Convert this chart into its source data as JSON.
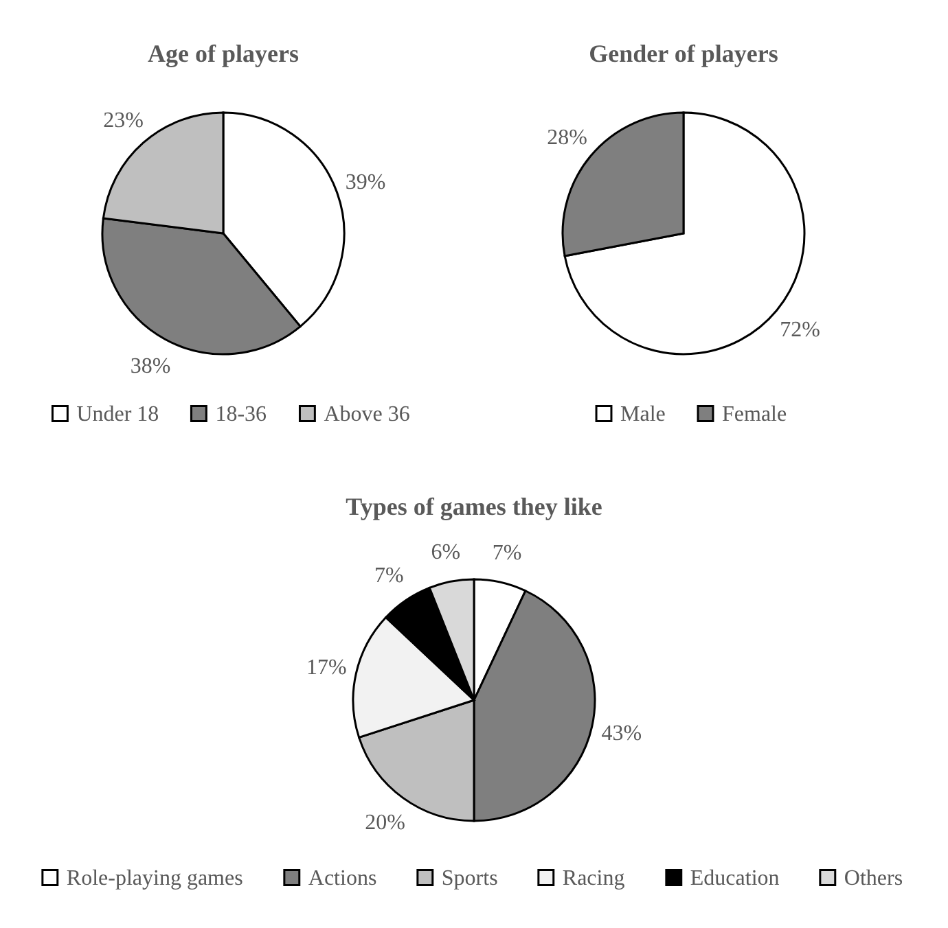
{
  "chart_data": [
    {
      "type": "pie",
      "title": "Age of players",
      "categories": [
        "Under 18",
        "18-36",
        "Above 36"
      ],
      "values": [
        39,
        38,
        23
      ],
      "colors": [
        "#ffffff",
        "#7f7f7f",
        "#bfbfbf"
      ],
      "value_labels": [
        "39%",
        "38%",
        "23%"
      ],
      "legend": "bottom"
    },
    {
      "type": "pie",
      "title": "Gender of players",
      "categories": [
        "Male",
        "Female"
      ],
      "values": [
        72,
        28
      ],
      "colors": [
        "#ffffff",
        "#7f7f7f"
      ],
      "value_labels": [
        "72%",
        "28%"
      ],
      "legend": "bottom"
    },
    {
      "type": "pie",
      "title": "Types of games they like",
      "categories": [
        "Role-playing games",
        "Actions",
        "Sports",
        "Racing",
        "Education",
        "Others"
      ],
      "values": [
        7,
        43,
        20,
        17,
        7,
        6
      ],
      "colors": [
        "#ffffff",
        "#7f7f7f",
        "#bfbfbf",
        "#f2f2f2",
        "#000000",
        "#d9d9d9"
      ],
      "value_labels": [
        "7%",
        "43%",
        "20%",
        "17%",
        "7%",
        "6%"
      ],
      "legend": "bottom"
    }
  ]
}
